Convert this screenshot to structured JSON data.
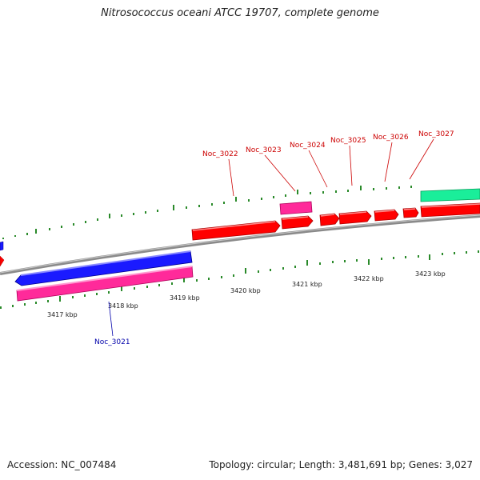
{
  "header": {
    "title": "Nitrosococcus oceani ATCC 19707, complete genome"
  },
  "footer": {
    "accession": "Accession: NC_007484",
    "stats": "Topology: circular; Length: 3,481,691 bp; Genes: 3,027"
  },
  "scale": {
    "ticks": [
      "3417 kbp",
      "3418 kbp",
      "3419 kbp",
      "3420 kbp",
      "3421 kbp",
      "3422 kbp",
      "3423 kbp"
    ]
  },
  "genes": {
    "labels": [
      "Noc_3021",
      "Noc_3022",
      "Noc_3023",
      "Noc_3024",
      "Noc_3025",
      "Noc_3026",
      "Noc_3027"
    ]
  },
  "colors": {
    "forward_cds": "#ff0000",
    "reverse_cds": "#1a1aff",
    "rna": "#ff2a9a",
    "other": "#1aee9a",
    "backbone": "#8a8a8a",
    "ticks": "#2a8a2a",
    "label_forward": "#cc0000",
    "label_reverse": "#0000aa"
  }
}
